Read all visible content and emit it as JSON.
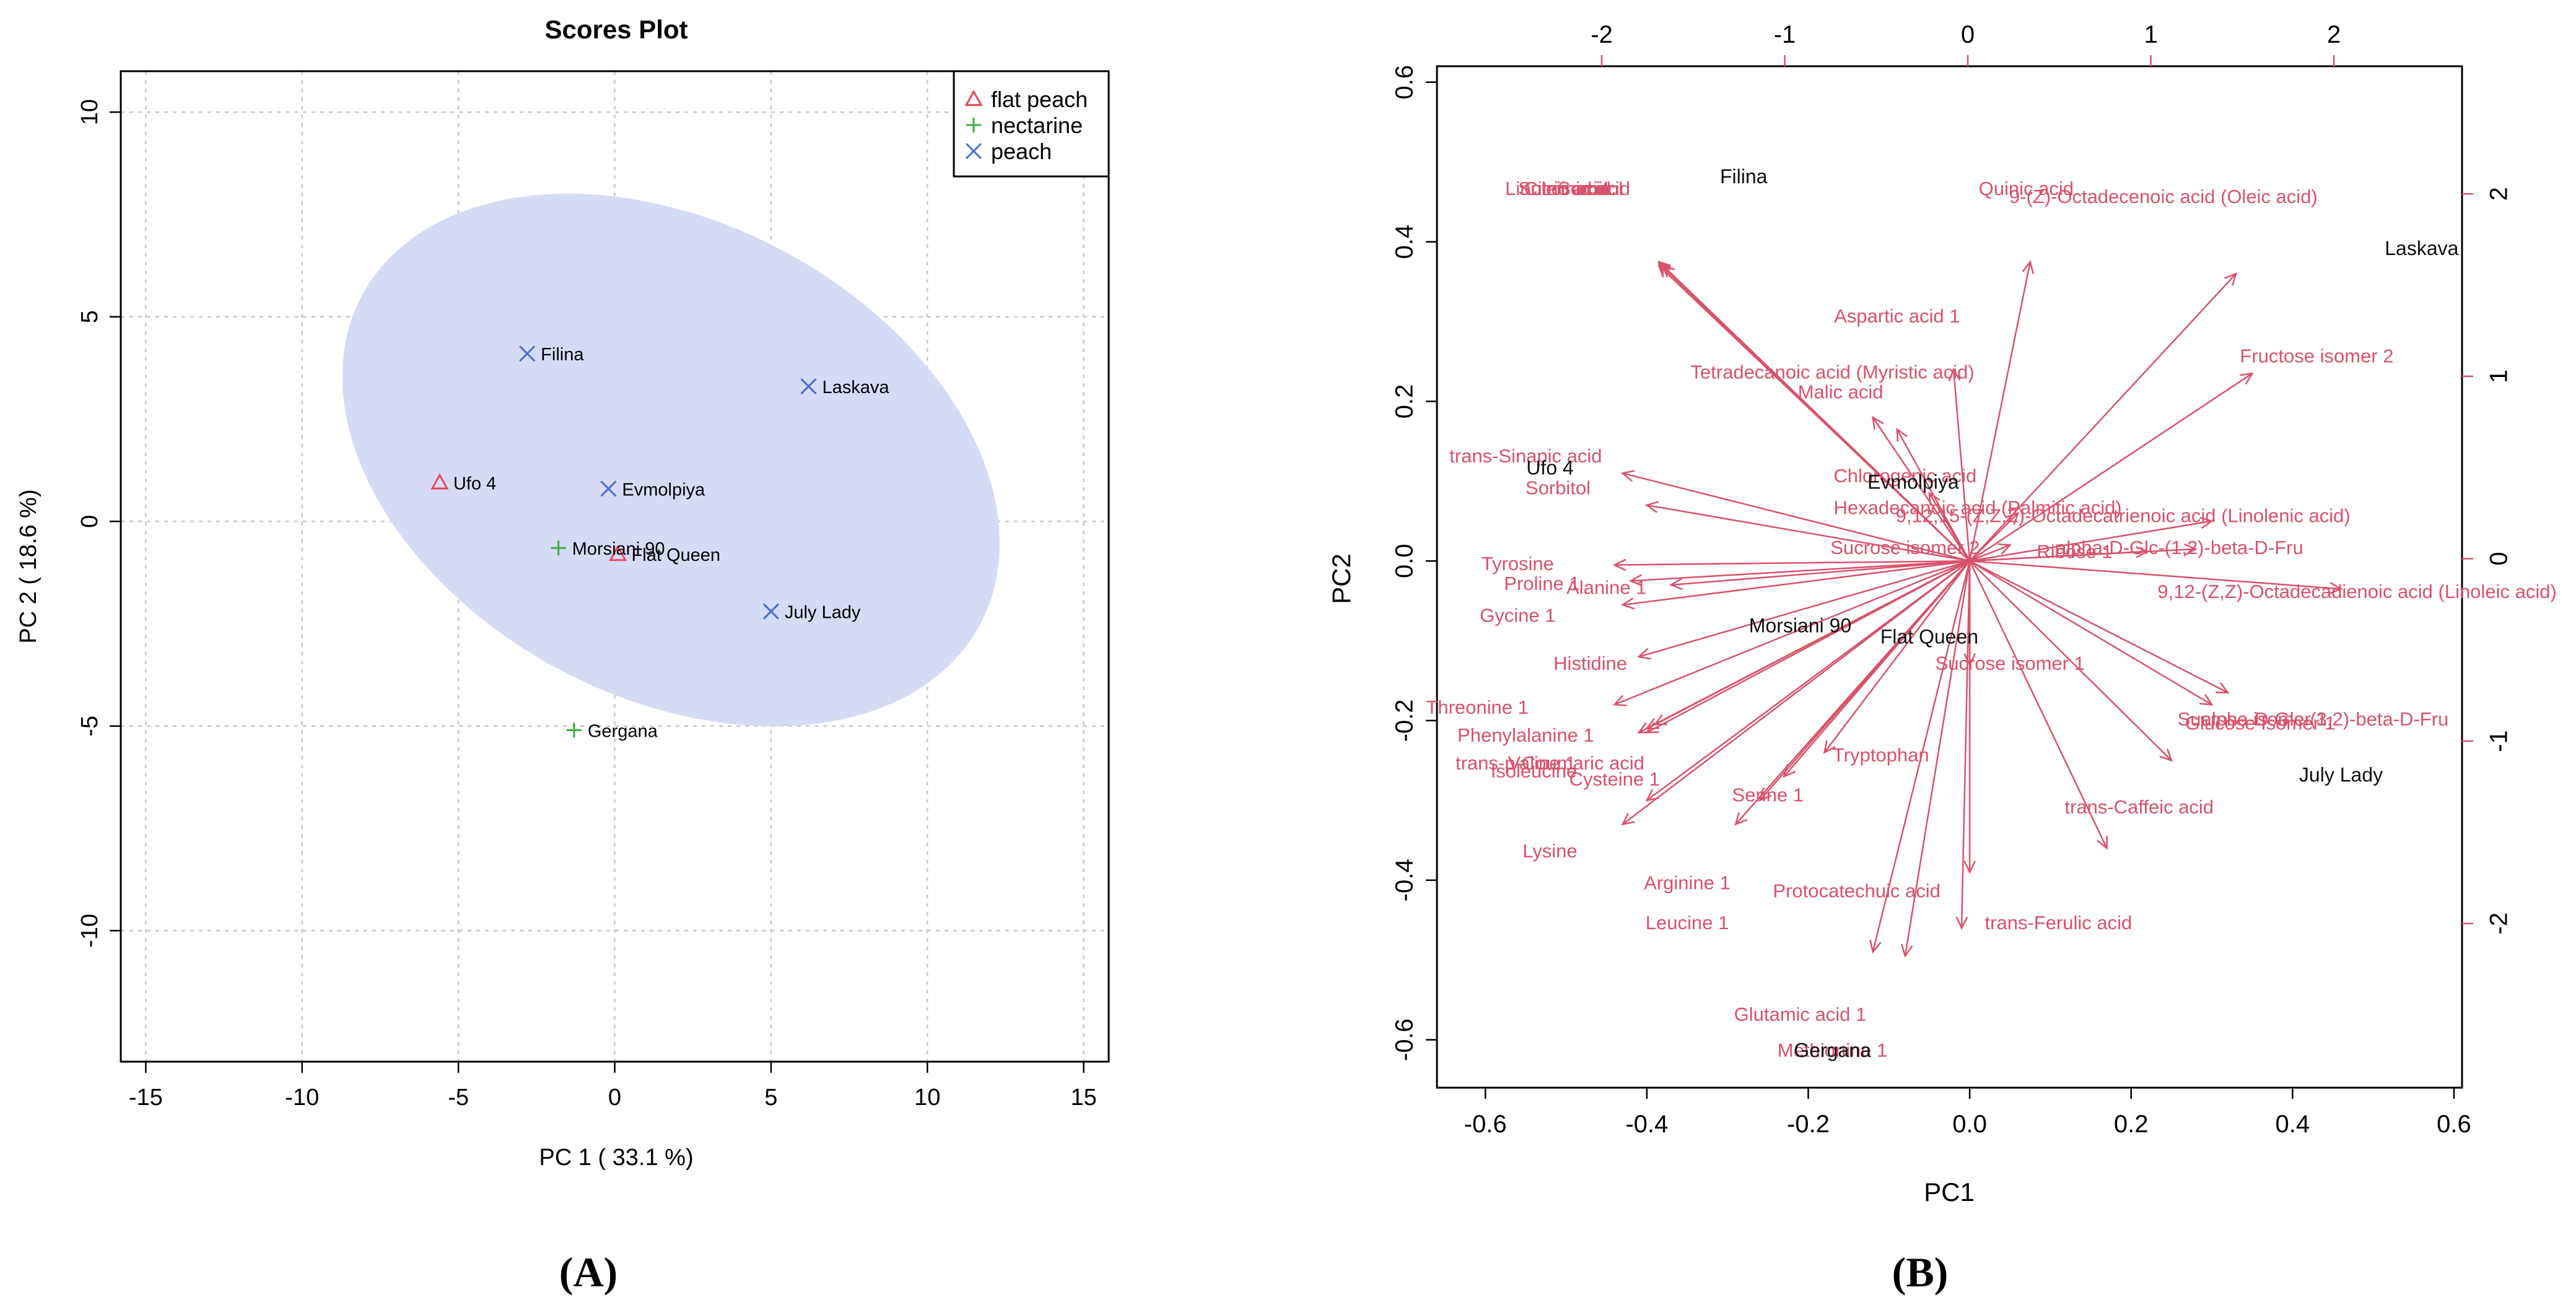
{
  "panel_labels": [
    "(A)",
    "(B)"
  ],
  "chart_data": [
    {
      "type": "scatter",
      "title": "Scores Plot",
      "xlabel": "PC 1 ( 33.1 %)",
      "ylabel": "PC 2 ( 18.6 %)",
      "xlim": [
        -15.8,
        15.8
      ],
      "ylim": [
        -13.2,
        11.0
      ],
      "xticks": [
        -15,
        -10,
        -5,
        0,
        5,
        10,
        15
      ],
      "yticks": [
        -10,
        -5,
        0,
        5,
        10
      ],
      "grid": true,
      "legend_position": "top-right",
      "ellipse": {
        "center_x": 1.8,
        "center_y": 1.5,
        "semi_axis_major": 11.2,
        "semi_axis_minor": 5.8,
        "rotation_deg": -28,
        "color": "#d6dbf5"
      },
      "series": [
        {
          "name": "flat peach",
          "marker": "triangle",
          "color": "#e8475f",
          "points": [
            {
              "x": -5.6,
              "y": 0.95,
              "label": "Ufo 4"
            },
            {
              "x": 0.1,
              "y": -0.8,
              "label": "Flat Queen"
            }
          ]
        },
        {
          "name": "nectarine",
          "marker": "plus",
          "color": "#3cae3c",
          "points": [
            {
              "x": -1.8,
              "y": -0.65,
              "label": "Morsiani 90"
            },
            {
              "x": -1.3,
              "y": -5.1,
              "label": "Gergana"
            }
          ]
        },
        {
          "name": "peach",
          "marker": "x",
          "color": "#4a6bd0",
          "points": [
            {
              "x": -2.8,
              "y": 4.1,
              "label": "Filina"
            },
            {
              "x": 6.2,
              "y": 3.3,
              "label": "Laskava"
            },
            {
              "x": -0.2,
              "y": 0.8,
              "label": "Evmolpiya"
            },
            {
              "x": 5.0,
              "y": -2.2,
              "label": "July Lady"
            }
          ]
        }
      ]
    },
    {
      "type": "scatter",
      "subtype": "biplot",
      "xlabel": "PC1",
      "ylabel": "PC2",
      "xlim": [
        -0.66,
        0.61
      ],
      "ylim": [
        -0.66,
        0.62
      ],
      "xticks": [
        -0.6,
        -0.4,
        -0.2,
        0.0,
        0.2,
        0.4,
        0.6
      ],
      "yticks": [
        -0.6,
        -0.4,
        -0.2,
        0.0,
        0.2,
        0.4,
        0.6
      ],
      "top_ticks": [
        -2,
        -1,
        0,
        1,
        2
      ],
      "right_ticks": [
        -2,
        -1,
        0,
        1,
        2
      ],
      "secondary_range": [
        -2.9,
        2.7
      ],
      "arrow_color": "#d8526a",
      "samples_color": "#111111",
      "samples": [
        {
          "label": "Filina",
          "x": -0.28,
          "y": 0.48
        },
        {
          "label": "Laskava",
          "x": 0.56,
          "y": 0.39
        },
        {
          "label": "Ufo 4",
          "x": -0.52,
          "y": 0.115
        },
        {
          "label": "Evmolpiya",
          "x": -0.07,
          "y": 0.097
        },
        {
          "label": "Morsiani 90",
          "x": -0.21,
          "y": -0.083
        },
        {
          "label": "Flat Queen",
          "x": -0.05,
          "y": -0.097
        },
        {
          "label": "July Lady",
          "x": 0.46,
          "y": -0.27
        },
        {
          "label": "Gergana",
          "x": -0.17,
          "y": -0.615
        }
      ],
      "loadings": [
        {
          "label": "Succinic acid",
          "x": -0.49,
          "y": 0.465,
          "ax": -0.385,
          "ay": 0.375
        },
        {
          "label": "Citric acid",
          "x": -0.5,
          "y": 0.465,
          "ax": -0.38,
          "ay": 0.37
        },
        {
          "label": "Sorbitol",
          "x": -0.47,
          "y": 0.465,
          "ax": -0.385,
          "ay": 0.37
        },
        {
          "label": "Linoleic acid",
          "x": -0.51,
          "y": 0.465,
          "ax": -0.385,
          "ay": 0.373
        },
        {
          "label": "Quinic acid",
          "x": 0.07,
          "y": 0.465,
          "ax": 0.075,
          "ay": 0.375
        },
        {
          "label": "9-(Z)-Octadecenoic acid (Oleic acid)",
          "x": 0.24,
          "y": 0.455,
          "ax": 0.33,
          "ay": 0.36
        },
        {
          "label": "Aspartic acid 1",
          "x": -0.09,
          "y": 0.305,
          "ax": -0.02,
          "ay": 0.24
        },
        {
          "label": "Fructose isomer 2",
          "x": 0.43,
          "y": 0.255,
          "ax": 0.35,
          "ay": 0.235
        },
        {
          "label": "Tetradecanoic acid (Myristic acid)",
          "x": -0.17,
          "y": 0.235,
          "ax": -0.12,
          "ay": 0.18
        },
        {
          "label": "Malic acid",
          "x": -0.16,
          "y": 0.21,
          "ax": -0.09,
          "ay": 0.165
        },
        {
          "label": "trans-Sinapic acid",
          "x": -0.55,
          "y": 0.13,
          "ax": -0.43,
          "ay": 0.11
        },
        {
          "label": "Sorbitol",
          "x": -0.51,
          "y": 0.09,
          "ax": -0.4,
          "ay": 0.07
        },
        {
          "label": "Chlorogenic acid",
          "x": -0.08,
          "y": 0.105,
          "ax": -0.05,
          "ay": 0.085
        },
        {
          "label": "Hexadecanoic acid (Palmitic acid)",
          "x": 0.01,
          "y": 0.065,
          "ax": 0.06,
          "ay": 0.06
        },
        {
          "label": "9,12,15-(Z,Z,Z)-Octadecatrienoic acid (Linolenic acid)",
          "x": 0.19,
          "y": 0.055,
          "ax": 0.3,
          "ay": 0.05
        },
        {
          "label": "Sucrose isomer 2",
          "x": -0.08,
          "y": 0.015,
          "ax": 0.05,
          "ay": 0.02
        },
        {
          "label": "Ribose 1",
          "x": 0.13,
          "y": 0.01,
          "ax": 0.22,
          "ay": 0.012
        },
        {
          "label": "alpha-D-Glc-(1,2)-beta-D-Fru",
          "x": 0.26,
          "y": 0.015,
          "ax": 0.28,
          "ay": 0.015
        },
        {
          "label": "Tyrosine",
          "x": -0.56,
          "y": -0.005,
          "ax": -0.44,
          "ay": -0.005
        },
        {
          "label": "Proline 1",
          "x": -0.53,
          "y": -0.03,
          "ax": -0.42,
          "ay": -0.025
        },
        {
          "label": "Alanine 1",
          "x": -0.45,
          "y": -0.035,
          "ax": -0.37,
          "ay": -0.03
        },
        {
          "label": "Gycine 1",
          "x": -0.56,
          "y": -0.07,
          "ax": -0.43,
          "ay": -0.055
        },
        {
          "label": "9,12-(Z,Z)-Octadecadienoic acid (Linoleic acid)",
          "x": 0.48,
          "y": -0.04,
          "ax": 0.46,
          "ay": -0.035
        },
        {
          "label": "Histidine",
          "x": -0.47,
          "y": -0.13,
          "ax": -0.41,
          "ay": -0.12
        },
        {
          "label": "Threonine 1",
          "x": -0.61,
          "y": -0.185,
          "ax": -0.44,
          "ay": -0.18
        },
        {
          "label": "Sucrose isomer 1",
          "x": 0.05,
          "y": -0.13,
          "ax": 0.0,
          "ay": -0.13
        },
        {
          "label": "Phenylalanine 1",
          "x": -0.55,
          "y": -0.22,
          "ax": -0.4,
          "ay": -0.215
        },
        {
          "label": "trans-p-Coumaric acid",
          "x": -0.52,
          "y": -0.255,
          "ax": -0.4,
          "ay": -0.21
        },
        {
          "label": "Isoleucine",
          "x": -0.54,
          "y": -0.265,
          "ax": -0.39,
          "ay": -0.205
        },
        {
          "label": "Valine 1",
          "x": -0.53,
          "y": -0.255,
          "ax": -0.41,
          "ay": -0.215
        },
        {
          "label": "Cysteine 1",
          "x": -0.44,
          "y": -0.275,
          "ax": -0.4,
          "ay": -0.3
        },
        {
          "label": "Tryptophan",
          "x": -0.11,
          "y": -0.245,
          "ax": -0.18,
          "ay": -0.24
        },
        {
          "label": "Serine 1",
          "x": -0.25,
          "y": -0.295,
          "ax": -0.23,
          "ay": -0.27
        },
        {
          "label": "Sucrose isomer 3",
          "x": 0.35,
          "y": -0.2,
          "ax": 0.25,
          "ay": -0.25
        },
        {
          "label": "alpha-D-Glc-(1,2)-beta-D-Fru",
          "x": 0.44,
          "y": -0.2,
          "ax": 0.32,
          "ay": -0.165
        },
        {
          "label": "Glucose Isomer 1",
          "x": 0.36,
          "y": -0.205,
          "ax": 0.3,
          "ay": -0.18
        },
        {
          "label": "trans-Caffeic acid",
          "x": 0.21,
          "y": -0.31,
          "ax": 0.17,
          "ay": -0.36
        },
        {
          "label": "Lysine",
          "x": -0.52,
          "y": -0.365,
          "ax": -0.43,
          "ay": -0.33
        },
        {
          "label": "Arginine 1",
          "x": -0.35,
          "y": -0.405,
          "ax": -0.26,
          "ay": -0.3
        },
        {
          "label": "Protocatechuic acid",
          "x": -0.14,
          "y": -0.415,
          "ax": -0.01,
          "ay": -0.46
        },
        {
          "label": "trans-Ferulic acid",
          "x": 0.11,
          "y": -0.455,
          "ax": 0.0,
          "ay": -0.39
        },
        {
          "label": "Leucine 1",
          "x": -0.35,
          "y": -0.455,
          "ax": -0.29,
          "ay": -0.33
        },
        {
          "label": "Glutamic acid 1",
          "x": -0.21,
          "y": -0.57,
          "ax": -0.08,
          "ay": -0.495
        },
        {
          "label": "Methionine 1",
          "x": -0.17,
          "y": -0.615,
          "ax": -0.12,
          "ay": -0.49
        }
      ]
    }
  ]
}
